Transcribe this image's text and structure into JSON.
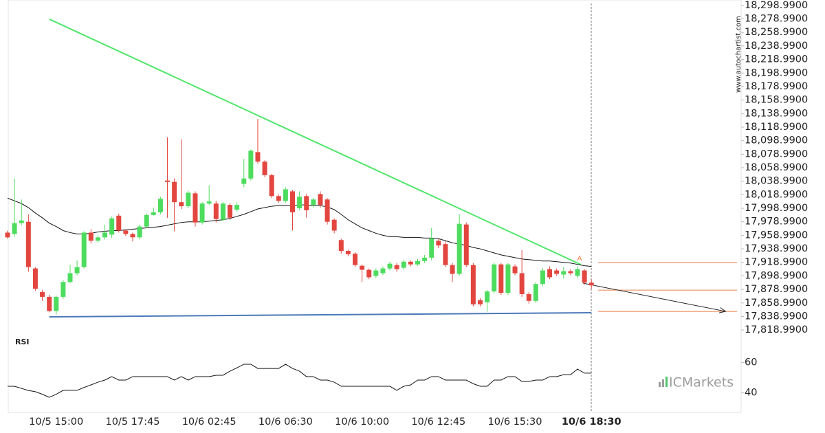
{
  "chart_data": {
    "type": "candlestick",
    "categories": [
      null,
      null,
      null,
      null,
      null,
      null,
      null,
      "10/5 15:00",
      null,
      null,
      null,
      null,
      null,
      null,
      null,
      null,
      null,
      null,
      "10/5 17:45",
      null,
      null,
      null,
      null,
      null,
      null,
      null,
      null,
      null,
      null,
      "10/6 02:45",
      null,
      null,
      null,
      null,
      null,
      null,
      null,
      null,
      null,
      null,
      "10/6 06:30",
      null,
      null,
      null,
      null,
      null,
      null,
      null,
      null,
      null,
      null,
      "10/6 10:00",
      null,
      null,
      null,
      null,
      null,
      null,
      null,
      null,
      null,
      null,
      "10/6 12:45",
      null,
      null,
      null,
      null,
      null,
      null,
      null,
      null,
      null,
      null,
      "10/6 15:30",
      null,
      null,
      null,
      null,
      null,
      null,
      null,
      null,
      null,
      null,
      "10/6 18:30"
    ],
    "open": [
      17963,
      17961,
      17977,
      17979,
      17910,
      17875,
      17868,
      17847,
      17868,
      17890,
      17903,
      17912,
      17963,
      17951,
      17956,
      17960,
      17988,
      17966,
      17961,
      17956,
      17972,
      17989,
      17993,
      18040,
      18038,
      18008,
      18002,
      18021,
      17978,
      18006,
      18006,
      17982,
      18004,
      17997,
      18035,
      18043,
      18082,
      18068,
      18048,
      18017,
      18010,
      18024,
      17999,
      18017,
      18004,
      18020,
      18012,
      17982,
      17952,
      17936,
      17932,
      17914,
      17908,
      17899,
      17903,
      17910,
      17915,
      17911,
      17920,
      17916,
      17921,
      17926,
      17951,
      17946,
      17915,
      17902,
      17975,
      17915,
      17863,
      17860,
      17876,
      17916,
      17874,
      17913,
      17903,
      17872,
      17862,
      17887,
      17909,
      17907,
      17901,
      17906,
      17899,
      17907,
      17889
    ],
    "high": [
      17966,
      18043,
      18012,
      17990,
      17912,
      17878,
      17871,
      17870,
      17893,
      17915,
      17922,
      17965,
      17968,
      17960,
      17975,
      17987,
      17991,
      17968,
      17963,
      17975,
      17991,
      18000,
      18016,
      18104,
      18043,
      18101,
      18025,
      18024,
      18008,
      18033,
      18010,
      18008,
      18007,
      18008,
      18072,
      18086,
      18131,
      18070,
      18050,
      18020,
      18030,
      18026,
      18024,
      18020,
      18014,
      18024,
      18014,
      17984,
      17954,
      17938,
      17934,
      17916,
      17910,
      17910,
      17913,
      17920,
      17918,
      17923,
      17922,
      17924,
      17930,
      17970,
      17954,
      17950,
      17918,
      17990,
      17978,
      17918,
      17866,
      17878,
      17919,
      17918,
      17918,
      17916,
      17937,
      17875,
      17890,
      17911,
      17913,
      17910,
      17912,
      17909,
      17913,
      17909,
      17894
    ],
    "low": [
      17954,
      17957,
      17974,
      17905,
      17877,
      17862,
      17845,
      17842,
      17865,
      17888,
      17900,
      17910,
      17947,
      17948,
      17953,
      17955,
      17963,
      17958,
      17950,
      17953,
      17970,
      17988,
      17990,
      17985,
      17965,
      17998,
      17999,
      17972,
      17975,
      18004,
      17978,
      17980,
      17982,
      17994,
      18030,
      18040,
      18065,
      18045,
      18014,
      18007,
      18007,
      17966,
      17996,
      17985,
      18000,
      18000,
      17975,
      17962,
      17932,
      17928,
      17912,
      17890,
      17894,
      17896,
      17900,
      17907,
      17905,
      17908,
      17913,
      17914,
      17918,
      17922,
      17940,
      17912,
      17890,
      17899,
      17912,
      17854,
      17854,
      17846,
      17873,
      17871,
      17871,
      17900,
      17868,
      17858,
      17859,
      17884,
      17894,
      17899,
      17895,
      17900,
      17896,
      17886,
      17880
    ],
    "close": [
      17956,
      17977,
      17981,
      17912,
      17880,
      17868,
      17847,
      17868,
      17890,
      17903,
      17912,
      17963,
      17951,
      17956,
      17963,
      17984,
      17966,
      17961,
      17956,
      17972,
      17989,
      17993,
      18013,
      18038,
      18008,
      18002,
      18022,
      17978,
      18006,
      18009,
      17983,
      18006,
      17985,
      18004,
      18043,
      18084,
      18068,
      18048,
      18017,
      18010,
      18027,
      17993,
      18016,
      17996,
      18012,
      18004,
      17979,
      17966,
      17936,
      17931,
      17915,
      17908,
      17897,
      17907,
      17910,
      17917,
      17909,
      17920,
      17916,
      17921,
      17926,
      17954,
      17944,
      17915,
      17902,
      17976,
      17915,
      17857,
      17857,
      17876,
      17916,
      17874,
      17916,
      17903,
      17872,
      17862,
      17887,
      17907,
      17897,
      17902,
      17906,
      17903,
      17909,
      17889,
      17885
    ],
    "up_color": "#4ddc5e",
    "down_color": "#e2463f",
    "series": [
      {
        "color": "#111111",
        "values": [
          18014,
          18010,
          18006,
          18000,
          17992,
          17985,
          17977,
          17972,
          17966,
          17963,
          17961,
          17961,
          17962,
          17964,
          17965,
          17966,
          17966,
          17967,
          17968,
          17969,
          17970,
          17971,
          17972,
          17974,
          17976,
          17978,
          17979,
          17979,
          17979,
          17980,
          17981,
          17982,
          17984,
          17987,
          17990,
          17994,
          17998,
          18000,
          18002,
          18003,
          18003,
          18003,
          18004,
          18004,
          18003,
          18003,
          18001,
          17997,
          17990,
          17982,
          17976,
          17970,
          17966,
          17962,
          17959,
          17957,
          17957,
          17956,
          17956,
          17956,
          17955,
          17955,
          17954,
          17951,
          17948,
          17946,
          17944,
          17941,
          17939,
          17936,
          17933,
          17930,
          17928,
          17926,
          17924,
          17923,
          17922,
          17921,
          17921,
          17920,
          17919,
          17918,
          17916,
          17914,
          17913
        ]
      }
    ],
    "trendlines": [
      {
        "color": "#4fe66a",
        "x": [
          6,
          82.5
        ],
        "values": [
          18278.7,
          17915.6
        ]
      },
      {
        "color": "#4a78b8",
        "x": [
          6,
          84
        ],
        "values": [
          17838.4,
          17844.5
        ]
      },
      {
        "color": "#222222",
        "x": [
          82.8,
          103.3
        ],
        "values": [
          17888.2,
          17846.5
        ],
        "arrow": true
      }
    ],
    "levels": [
      {
        "value": 17918.7,
        "color": "#e8814c"
      },
      {
        "value": 17878,
        "color": "#e8814c"
      },
      {
        "value": 17846.5,
        "color": "#e8814c"
      }
    ],
    "annotation": "A",
    "ylim": [
      17810.99,
      18306.99
    ],
    "yticks": [
      {
        "value": 18298.99,
        "label": "18,298.9900"
      },
      {
        "value": 18278.99,
        "label": "18,278.9900"
      },
      {
        "value": 18258.99,
        "label": "18,258.9900"
      },
      {
        "value": 18238.99,
        "label": "18,238.9900"
      },
      {
        "value": 18218.99,
        "label": "18,218.9900"
      },
      {
        "value": 18198.99,
        "label": "18,198.9900"
      },
      {
        "value": 18178.99,
        "label": "18,178.9900"
      },
      {
        "value": 18158.99,
        "label": "18,158.9900"
      },
      {
        "value": 18138.99,
        "label": "18,138.9900"
      },
      {
        "value": 18118.99,
        "label": "18,118.9900"
      },
      {
        "value": 18098.99,
        "label": "18,098.9900"
      },
      {
        "value": 18078.99,
        "label": "18,078.9900"
      },
      {
        "value": 18058.99,
        "label": "18,058.9900"
      },
      {
        "value": 18038.99,
        "label": "18,038.9900"
      },
      {
        "value": 18018.99,
        "label": "18,018.9900"
      },
      {
        "value": 17998.99,
        "label": "17,998.9900"
      },
      {
        "value": 17978.99,
        "label": "17,978.9900"
      },
      {
        "value": 17958.99,
        "label": "17,958.9900"
      },
      {
        "value": 17938.99,
        "label": "17,938.9900"
      },
      {
        "value": 17918.99,
        "label": "17,918.9900"
      },
      {
        "value": 17898.99,
        "label": "17,898.9900"
      },
      {
        "value": 17878.99,
        "label": "17,878.9900"
      },
      {
        "value": 17858.99,
        "label": "17,858.9900"
      },
      {
        "value": 17838.99,
        "label": "17,838.9900"
      },
      {
        "value": 17818.99,
        "label": "17,818.9900"
      }
    ],
    "rsi": {
      "label": "RSI",
      "color": "#111111",
      "ylim": [
        27,
        78
      ],
      "yticks": [
        40,
        60
      ],
      "values": [
        44.3,
        44.3,
        42.9,
        41.5,
        40.7,
        39,
        37.0,
        39,
        41.6,
        41.6,
        41.6,
        43.5,
        45.2,
        47,
        48.4,
        50.7,
        48.4,
        48.4,
        50.7,
        50.7,
        50.7,
        50.7,
        50.7,
        50.7,
        48.4,
        50.7,
        48.4,
        50.7,
        50.7,
        50.7,
        51.6,
        51.6,
        54.3,
        56.5,
        58.9,
        58.9,
        56.1,
        56.1,
        56.1,
        56.1,
        58.9,
        56.1,
        54.3,
        50.7,
        50.7,
        48.4,
        48.4,
        47,
        44.3,
        44.3,
        44.3,
        44.3,
        44.3,
        44.3,
        44.3,
        44.3,
        41.6,
        44.3,
        45.2,
        48.4,
        48.4,
        50.7,
        50.7,
        48.4,
        48.4,
        48.4,
        48.4,
        46,
        44.3,
        44.3,
        48.4,
        48.4,
        50.7,
        50.7,
        47.5,
        47.5,
        48.4,
        48.4,
        50.7,
        50.7,
        52,
        52,
        55.7,
        53,
        53
      ]
    },
    "watermark": "www.autochartist.com",
    "logo": "ICMarkets"
  }
}
